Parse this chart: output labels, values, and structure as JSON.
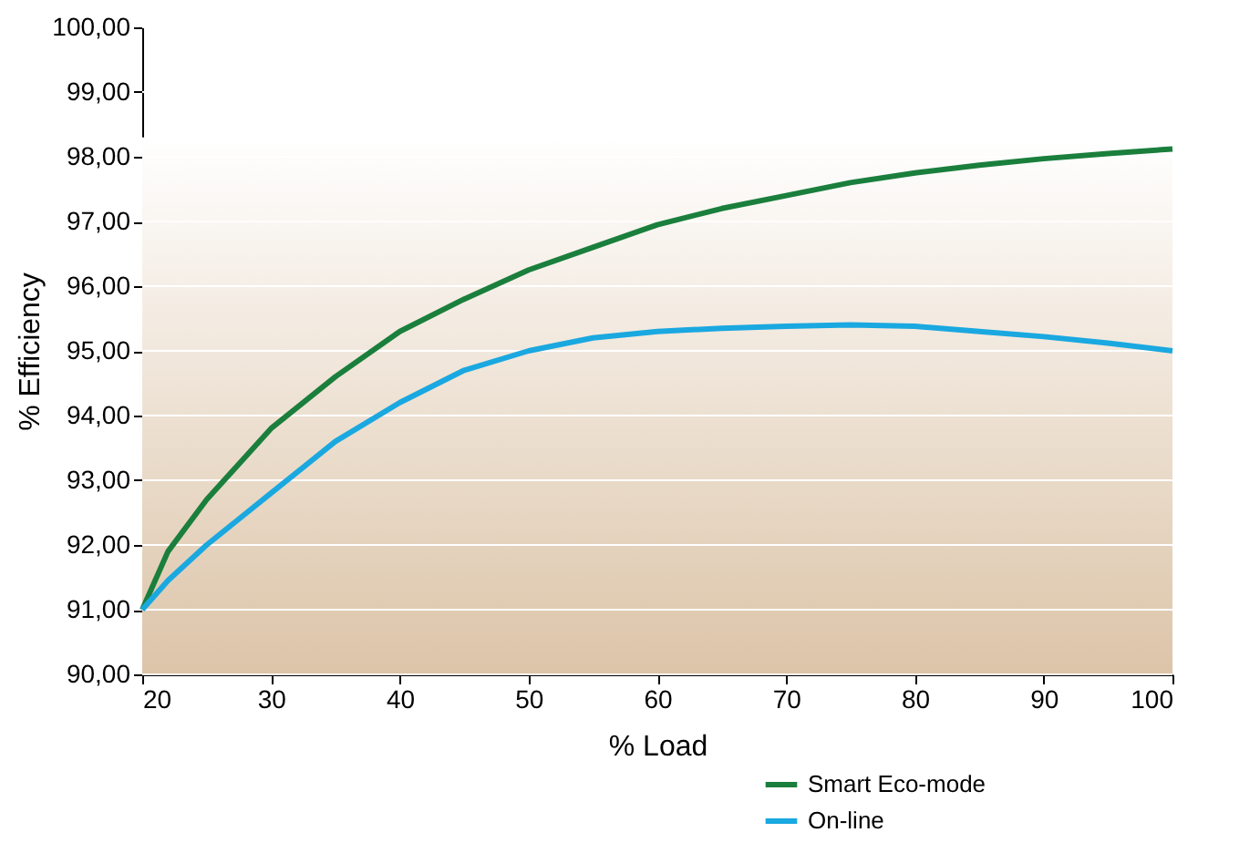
{
  "chart_data": {
    "type": "line",
    "xlabel": "% Load",
    "ylabel": "% Efficiency",
    "x": [
      20,
      22,
      25,
      30,
      35,
      40,
      45,
      50,
      55,
      60,
      65,
      70,
      75,
      80,
      85,
      90,
      95,
      100
    ],
    "series": [
      {
        "name": "Smart Eco-mode",
        "color": "#1a7f3c",
        "values": [
          91.0,
          91.9,
          92.7,
          93.8,
          94.6,
          95.3,
          95.8,
          96.25,
          96.6,
          96.95,
          97.2,
          97.4,
          97.6,
          97.75,
          97.87,
          97.97,
          98.05,
          98.12
        ]
      },
      {
        "name": "On-line",
        "color": "#1aa8e0",
        "values": [
          91.0,
          91.45,
          92.0,
          92.8,
          93.6,
          94.2,
          94.7,
          95.0,
          95.2,
          95.3,
          95.35,
          95.38,
          95.4,
          95.38,
          95.3,
          95.22,
          95.12,
          95.0
        ]
      }
    ],
    "xlim": [
      20,
      100
    ],
    "xticks": [
      20,
      30,
      40,
      50,
      60,
      70,
      80,
      90,
      100
    ],
    "ylim": [
      90,
      100
    ],
    "yticks": [
      {
        "value": 90,
        "label": "90,00"
      },
      {
        "value": 91,
        "label": "91,00"
      },
      {
        "value": 92,
        "label": "92,00"
      },
      {
        "value": 93,
        "label": "93,00"
      },
      {
        "value": 94,
        "label": "94,00"
      },
      {
        "value": 95,
        "label": "95,00"
      },
      {
        "value": 96,
        "label": "96,00"
      },
      {
        "value": 97,
        "label": "97,00"
      },
      {
        "value": 98,
        "label": "98,00"
      },
      {
        "value": 99,
        "label": "99,00"
      },
      {
        "value": 100,
        "label": "100,00"
      }
    ],
    "bands": [
      {
        "axis": "y",
        "from": 90,
        "to": 98.3,
        "color": "#dcc4a8"
      }
    ],
    "grid": "y",
    "legend": "bottom right",
    "line_style": "solid"
  }
}
